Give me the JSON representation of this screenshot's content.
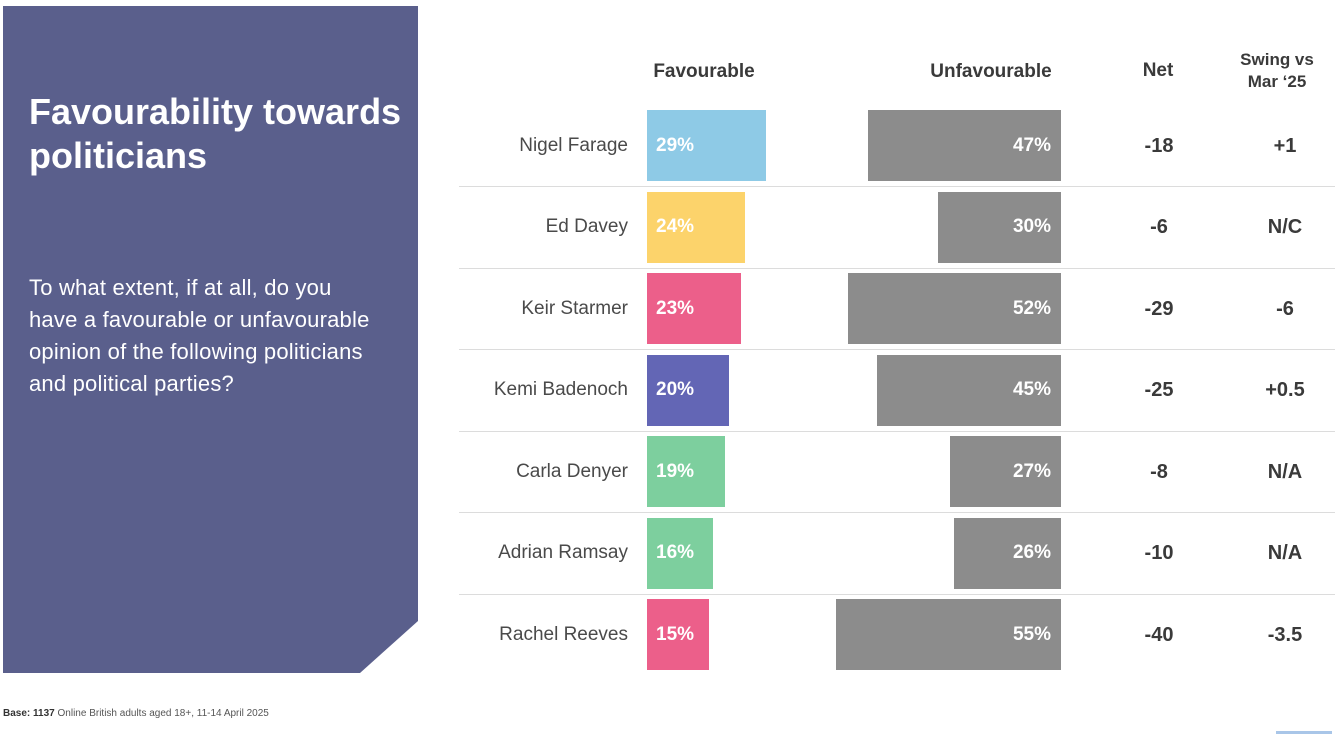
{
  "panel": {
    "title": "Favourability towards politicians",
    "question": "To what extent, if at all, do you have a favourable or unfavourable opinion of the following politicians and political parties?"
  },
  "headers": {
    "favourable": "Favourable",
    "unfavourable": "Unfavourable",
    "net": "Net",
    "swing_line1": "Swing vs",
    "swing_line2": "Mar ‘25"
  },
  "footer": {
    "base_label": "Base:",
    "base_count": "1137",
    "base_text": "Online British adults aged 18+, 11-14 April 2025"
  },
  "chart_data": {
    "type": "bar",
    "title": "Favourability towards politicians",
    "categories": [
      "Nigel Farage",
      "Ed Davey",
      "Keir Starmer",
      "Kemi Badenoch",
      "Carla Denyer",
      "Adrian Ramsay",
      "Rachel Reeves"
    ],
    "series": [
      {
        "name": "Favourable",
        "values": [
          29,
          24,
          23,
          20,
          19,
          16,
          15
        ],
        "labels": [
          "29%",
          "24%",
          "23%",
          "20%",
          "19%",
          "16%",
          "15%"
        ]
      },
      {
        "name": "Unfavourable",
        "values": [
          47,
          30,
          52,
          45,
          27,
          26,
          55
        ],
        "labels": [
          "47%",
          "30%",
          "52%",
          "45%",
          "27%",
          "26%",
          "55%"
        ]
      }
    ],
    "net": [
      "-18",
      "-6",
      "-29",
      "-25",
      "-8",
      "-10",
      "-40"
    ],
    "swing": [
      "+1",
      "N/C",
      "-6",
      "+0.5",
      "N/A",
      "N/A",
      "-3.5"
    ],
    "colors": {
      "favourable": [
        "#8ecae6",
        "#fcd36b",
        "#ec5f8a",
        "#6366b5",
        "#7dcf9e",
        "#7dcf9e",
        "#ec5f8a"
      ],
      "unfavourable": "#8c8c8c"
    },
    "ylim": [
      0,
      100
    ]
  }
}
